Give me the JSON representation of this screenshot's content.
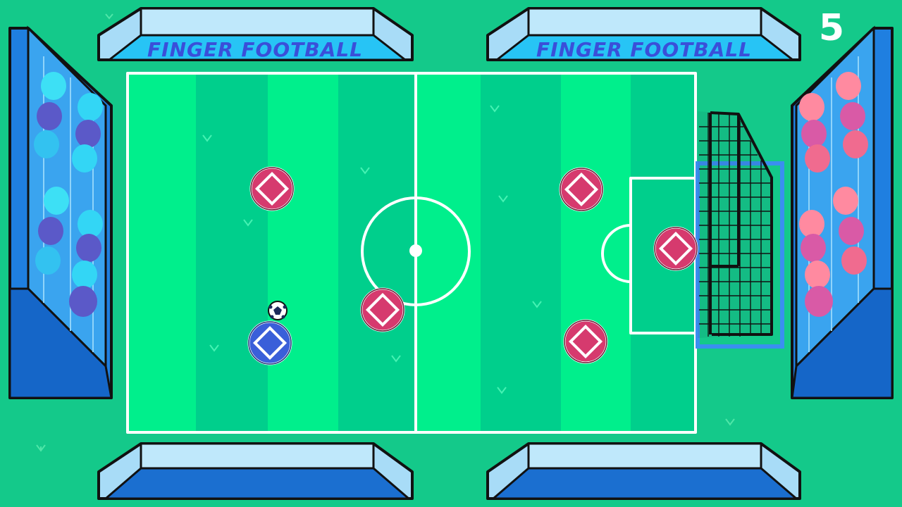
{
  "game": {
    "title": "Finger Football",
    "score": "5"
  },
  "banners": {
    "left_text": "FINGER FOOTBALL",
    "right_text": "FINGER FOOTBALL"
  },
  "teams": {
    "home": {
      "name": "blue",
      "color": "#3a5fd9",
      "fans": [
        "#3de0f5",
        "#5b59c8",
        "#33c2f0"
      ]
    },
    "away": {
      "name": "red",
      "color": "#d63a6e",
      "fans": [
        "#ff8aa0",
        "#d95aa6",
        "#f06b8f"
      ]
    }
  },
  "colors": {
    "background": "#14c98a",
    "pitch_light": "#00ef8c",
    "pitch_dark": "#00cf8c",
    "lines": "#ffffff",
    "stand": "#1a7fe0",
    "banner": "#27c4f5",
    "banner_text": "#3a4fd9"
  }
}
